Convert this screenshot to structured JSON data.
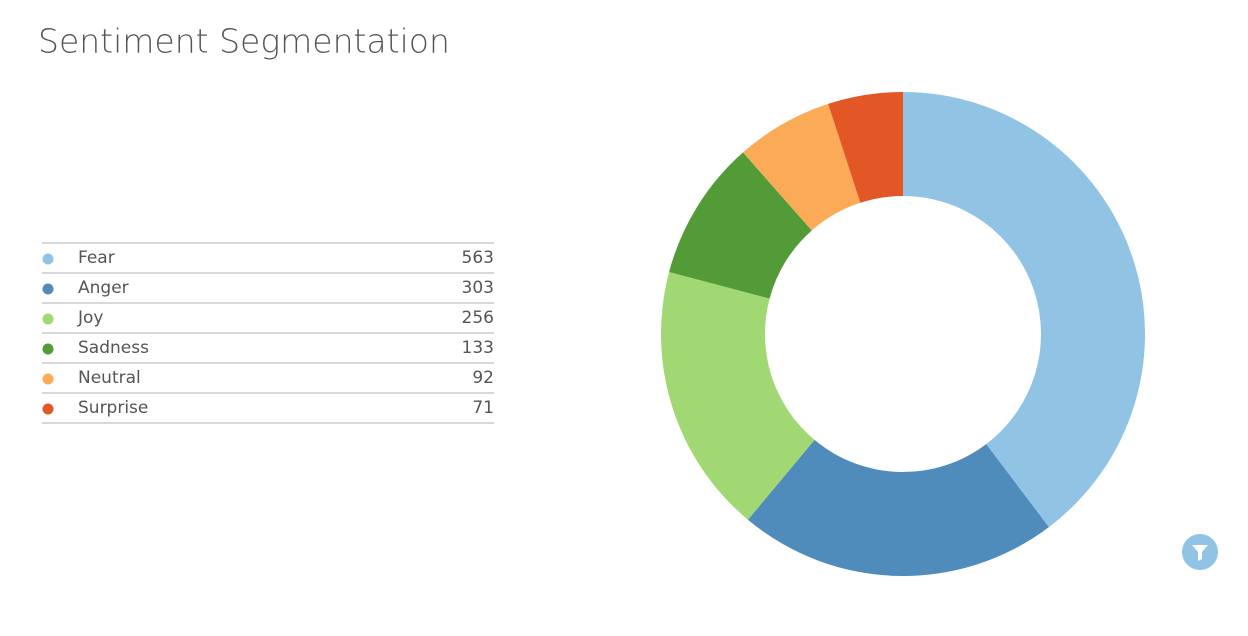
{
  "chart_data": {
    "type": "pie",
    "donut": true,
    "title": "Sentiment Segmentation",
    "categories": [
      "Fear",
      "Anger",
      "Joy",
      "Sadness",
      "Neutral",
      "Surprise"
    ],
    "values": [
      563,
      303,
      256,
      133,
      92,
      71
    ],
    "colors": [
      "#90c3e4",
      "#4f8bbb",
      "#a1d873",
      "#539b37",
      "#fbab57",
      "#e25725"
    ],
    "legend": "left"
  }
}
